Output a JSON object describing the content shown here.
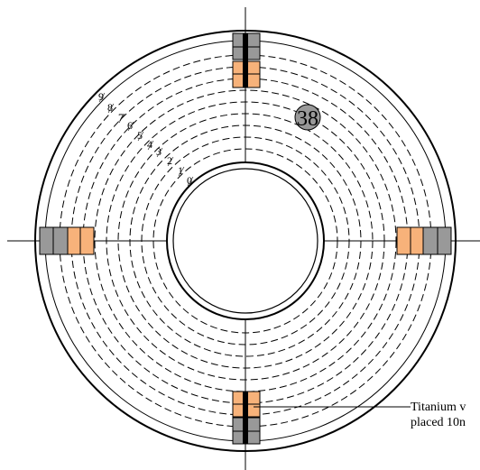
{
  "diagram": {
    "ring_labels": [
      "0",
      "1",
      "2",
      "3",
      "4",
      "5",
      "6",
      "7",
      "8",
      "9"
    ],
    "marker_label": "38",
    "annotation_lines": [
      "Titanium v",
      "placed 10n"
    ],
    "colors": {
      "line": "#000000",
      "orange_block": "#f7b27a",
      "gray_block": "#999999",
      "marker_fill": "#999999",
      "background": "#ffffff"
    }
  }
}
